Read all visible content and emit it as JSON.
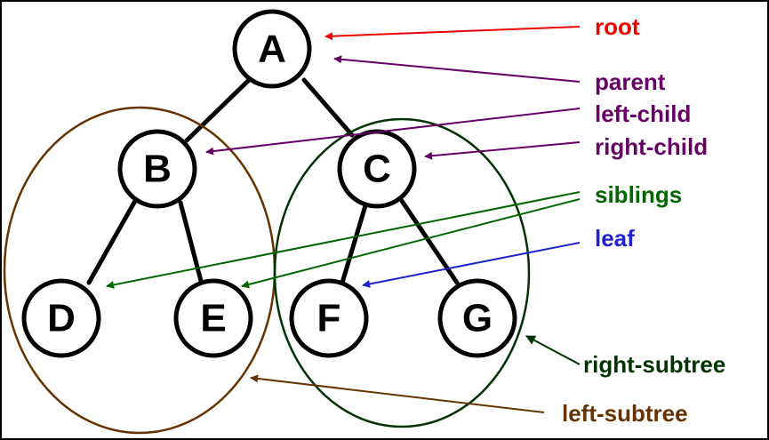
{
  "nodes": {
    "a": "A",
    "b": "B",
    "c": "C",
    "d": "D",
    "e": "E",
    "f": "F",
    "g": "G"
  },
  "labels": {
    "root": "root",
    "parent": "parent",
    "left_child": "left-child",
    "right_child": "right-child",
    "siblings": "siblings",
    "leaf": "leaf",
    "right_subtree": "right-subtree",
    "left_subtree": "left-subtree"
  },
  "colors": {
    "root": "#ee0000",
    "parent": "#660066",
    "child": "#660066",
    "siblings": "#006600",
    "leaf": "#2222cc",
    "right_subtree": "#003300",
    "left_subtree": "#663300"
  }
}
